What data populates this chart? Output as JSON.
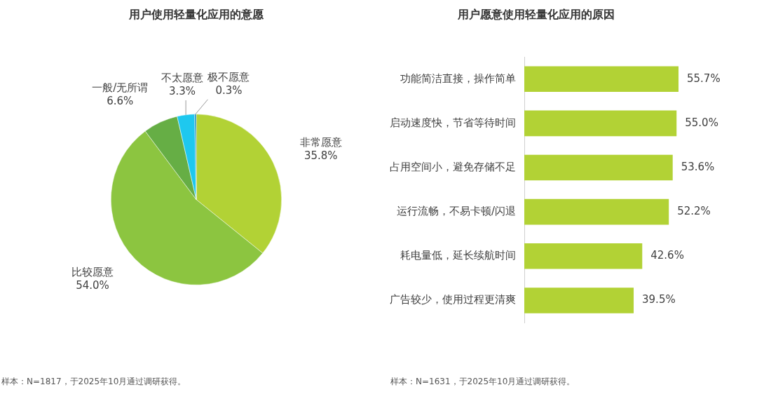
{
  "chart_data": [
    {
      "type": "pie",
      "title": "用户使用轻量化应用的意愿",
      "categories": [
        "非常愿意",
        "比较愿意",
        "一般/无所谓",
        "不太愿意",
        "极不愿意"
      ],
      "values": [
        35.8,
        54.0,
        6.6,
        3.3,
        0.3
      ],
      "value_labels": [
        "35.8%",
        "54.0%",
        "6.6%",
        "3.3%",
        "0.3%"
      ],
      "colors": [
        "#b2d235",
        "#8cc540",
        "#66ae45",
        "#1ec8ef",
        "#1a8fc0"
      ],
      "legend": false,
      "annotations": [
        "样本：N=1817，于2025年10月通过调研获得。"
      ]
    },
    {
      "type": "bar",
      "orientation": "horizontal",
      "title": "用户愿意使用轻量化应用的原因",
      "categories": [
        "功能简洁直接，操作简单",
        "启动速度快，节省等待时间",
        "占用空间小，避免存储不足",
        "运行流畅，不易卡顿/闪退",
        "耗电量低，延长续航时间",
        "广告较少，使用过程更清爽"
      ],
      "values": [
        55.7,
        55.0,
        53.6,
        52.2,
        42.6,
        39.5
      ],
      "value_labels": [
        "55.7%",
        "55.0%",
        "53.6%",
        "52.2%",
        "42.6%",
        "39.5%"
      ],
      "color": "#b2d235",
      "legend": false,
      "annotations": [
        "样本：N=1631，于2025年10月通过调研获得。"
      ]
    }
  ]
}
